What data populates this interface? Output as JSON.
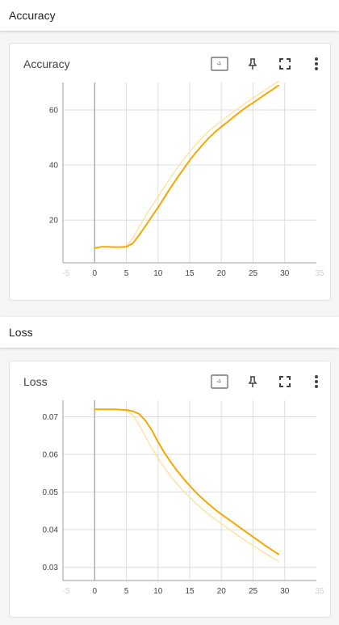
{
  "sections": [
    {
      "title": "Accuracy"
    },
    {
      "title": "Loss"
    }
  ],
  "toolbar_icons": [
    "fit-domain-icon",
    "pin-icon",
    "fullscreen-icon",
    "more-vert-icon"
  ],
  "colors": {
    "series": "#f5a800",
    "series_raw": "#fde3a6",
    "grid": "#dedede",
    "zero_line": "#9e9e9e"
  },
  "chart_data": [
    {
      "type": "line",
      "title": "Accuracy",
      "xlabel": "",
      "ylabel": "",
      "xlim": [
        -5,
        35
      ],
      "ylim": [
        4.5,
        70
      ],
      "xticks": [
        0,
        5,
        10,
        15,
        20,
        25,
        30
      ],
      "xticks_faint": [
        "-5",
        "35"
      ],
      "yticks": [
        20,
        40,
        60
      ],
      "grid": true,
      "series": [
        {
          "role": "smoothed",
          "x": [
            0,
            1,
            2,
            3,
            4,
            5,
            6,
            7,
            8,
            9,
            10,
            11,
            12,
            13,
            14,
            15,
            16,
            17,
            18,
            19,
            20,
            21,
            22,
            23,
            24,
            25,
            26,
            27,
            28,
            29
          ],
          "values": [
            9.8,
            10.3,
            10.3,
            10.2,
            10.2,
            10.3,
            11.5,
            14.5,
            17.8,
            21.2,
            24.6,
            28.2,
            31.8,
            35.2,
            38.5,
            41.7,
            44.6,
            47.3,
            49.8,
            52,
            53.9,
            55.7,
            57.6,
            59.4,
            61.1,
            62.6,
            64.2,
            65.8,
            67.3,
            68.9
          ]
        },
        {
          "role": "raw",
          "x": [
            0,
            1,
            2,
            3,
            4,
            5,
            6,
            7,
            8,
            9,
            10,
            11,
            12,
            13,
            14,
            15,
            16,
            17,
            18,
            19,
            20,
            21,
            22,
            23,
            24,
            25,
            26,
            27,
            28,
            29
          ],
          "values": [
            9.8,
            10.3,
            10.3,
            10.2,
            10.2,
            10.5,
            13.5,
            17.5,
            21.5,
            25,
            28.5,
            32,
            35.5,
            38.8,
            42,
            44.8,
            47.4,
            49.9,
            52.2,
            54.2,
            56,
            57.8,
            59.5,
            61.2,
            62.8,
            64.4,
            65.9,
            67.4,
            68.9,
            70.4
          ]
        }
      ]
    },
    {
      "type": "line",
      "title": "Loss",
      "xlabel": "",
      "ylabel": "",
      "xlim": [
        -5,
        35
      ],
      "ylim": [
        0.0265,
        0.0744
      ],
      "xticks": [
        0,
        5,
        10,
        15,
        20,
        25,
        30
      ],
      "xticks_faint": [
        "-5",
        "35"
      ],
      "yticks": [
        0.03,
        0.04,
        0.05,
        0.06,
        0.07
      ],
      "grid": true,
      "series": [
        {
          "role": "smoothed",
          "x": [
            0,
            1,
            2,
            3,
            4,
            5,
            6,
            7,
            8,
            9,
            10,
            11,
            12,
            13,
            14,
            15,
            16,
            17,
            18,
            19,
            20,
            21,
            22,
            23,
            24,
            25,
            26,
            27,
            28,
            29
          ],
          "values": [
            0.072,
            0.072,
            0.072,
            0.072,
            0.0719,
            0.0718,
            0.0715,
            0.0708,
            0.069,
            0.0665,
            0.0633,
            0.0605,
            0.058,
            0.0557,
            0.0536,
            0.0517,
            0.0499,
            0.0483,
            0.0468,
            0.0454,
            0.0441,
            0.0429,
            0.0417,
            0.0405,
            0.0393,
            0.0381,
            0.0369,
            0.0357,
            0.0346,
            0.0335
          ]
        },
        {
          "role": "raw",
          "x": [
            0,
            1,
            2,
            3,
            4,
            5,
            6,
            7,
            8,
            9,
            10,
            11,
            12,
            13,
            14,
            15,
            16,
            17,
            18,
            19,
            20,
            21,
            22,
            23,
            24,
            25,
            26,
            27,
            28,
            29
          ],
          "values": [
            0.072,
            0.072,
            0.072,
            0.072,
            0.0719,
            0.0716,
            0.0705,
            0.068,
            0.0648,
            0.0618,
            0.059,
            0.0565,
            0.0542,
            0.0522,
            0.0503,
            0.0486,
            0.047,
            0.0455,
            0.0441,
            0.0428,
            0.0416,
            0.0404,
            0.0392,
            0.038,
            0.0369,
            0.0358,
            0.0347,
            0.0336,
            0.0326,
            0.0316
          ]
        }
      ]
    }
  ]
}
